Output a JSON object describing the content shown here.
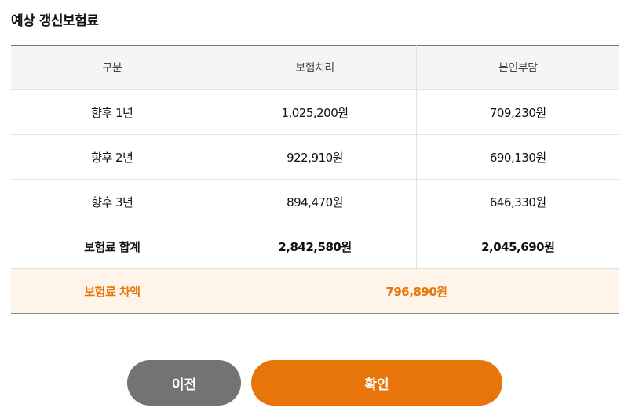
{
  "title": "예상 갱신보험료",
  "table": {
    "headers": [
      "구분",
      "보험치리",
      "본인부담"
    ],
    "rows": [
      {
        "label": "향후 1년",
        "insurance": "1,025,200원",
        "self": "709,230원"
      },
      {
        "label": "향후 2년",
        "insurance": "922,910원",
        "self": "690,130원"
      },
      {
        "label": "향후 3년",
        "insurance": "894,470원",
        "self": "646,330원"
      }
    ],
    "total": {
      "label": "보험료 합계",
      "insurance": "2,842,580원",
      "self": "2,045,690원"
    },
    "difference": {
      "label": "보험료 차액",
      "value": "796,890원"
    }
  },
  "buttons": {
    "prev_label": "이전",
    "confirm_label": "확인"
  },
  "colors": {
    "accent": "#e8750a",
    "secondary_button": "#737373",
    "highlight_row_bg": "#fff4ea",
    "header_bg": "#f5f5f5"
  }
}
